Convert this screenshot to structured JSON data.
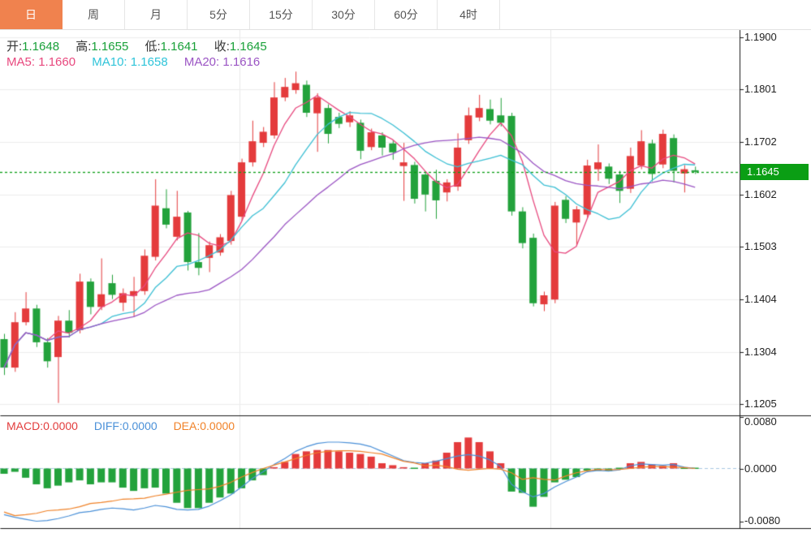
{
  "tabs": {
    "items": [
      {
        "label": "日",
        "active": true
      },
      {
        "label": "周",
        "active": false
      },
      {
        "label": "月",
        "active": false
      },
      {
        "label": "5分",
        "active": false
      },
      {
        "label": "15分",
        "active": false
      },
      {
        "label": "30分",
        "active": false
      },
      {
        "label": "60分",
        "active": false
      },
      {
        "label": "4时",
        "active": false
      }
    ]
  },
  "quote": {
    "open_label": "开:",
    "open": "1.1648",
    "high_label": "高:",
    "high": "1.1655",
    "low_label": "低:",
    "low": "1.1641",
    "close_label": "收:",
    "close": "1.1645"
  },
  "ma": {
    "ma5_label": "MA5:",
    "ma5": "1.1660",
    "ma10_label": "MA10:",
    "ma10": "1.1658",
    "ma20_label": "MA20:",
    "ma20": "1.1616"
  },
  "macd_readout": {
    "macd_label": "MACD:",
    "macd": "0.0000",
    "diff_label": "DIFF:",
    "diff": "0.0000",
    "dea_label": "DEA:",
    "dea": "0.0000"
  },
  "current_price": {
    "value": "1.1645"
  },
  "colors": {
    "tab_active_orange": "#f0824e",
    "up_red": "#e43b3c",
    "down_green": "#23a23c",
    "ma5_pink": "#e8487e",
    "ma10_cyan": "#3bbfd4",
    "ma20_purple": "#9b55c4",
    "diff_blue": "#4a90d8",
    "dea_orange": "#f08228",
    "price_line_green": "#0a9e14",
    "price_tag_green": "#0a9e14",
    "grid": "#ededed",
    "axis_line": "#1a1a1a"
  },
  "chart_data": {
    "type": "candlestick",
    "legend": [
      "MA5",
      "MA10",
      "MA20",
      "MACD",
      "DIFF",
      "DEA"
    ],
    "price_axis_ticks": [
      "1.1900",
      "1.1801",
      "1.1702",
      "1.1602",
      "1.1503",
      "1.1404",
      "1.1304",
      "1.1205"
    ],
    "price_ylim": [
      1.1205,
      1.19
    ],
    "macd_axis_ticks": [
      "0.0080",
      "0.0000",
      "-0.0080"
    ],
    "macd_ylim": [
      -0.008,
      0.008
    ],
    "current_price": 1.1645,
    "up_means": "close>=open (red)",
    "down_means": "close<open (green)",
    "ma_periods": [
      5,
      10,
      20
    ],
    "candles_ohlc": [
      [
        1.1328,
        1.1338,
        1.126,
        1.1274
      ],
      [
        1.1274,
        1.1379,
        1.1266,
        1.136
      ],
      [
        1.136,
        1.1417,
        1.1354,
        1.1386
      ],
      [
        1.1386,
        1.1393,
        1.1313,
        1.1322
      ],
      [
        1.1322,
        1.133,
        1.1274,
        1.1286
      ],
      [
        1.1294,
        1.1372,
        1.1207,
        1.1363
      ],
      [
        1.1363,
        1.1383,
        1.1331,
        1.134
      ],
      [
        1.1345,
        1.1452,
        1.1339,
        1.1437
      ],
      [
        1.1437,
        1.1443,
        1.1375,
        1.1389
      ],
      [
        1.1389,
        1.1481,
        1.1383,
        1.1413
      ],
      [
        1.1434,
        1.145,
        1.1404,
        1.1412
      ],
      [
        1.1397,
        1.1424,
        1.1381,
        1.1415
      ],
      [
        1.141,
        1.1446,
        1.137,
        1.1419
      ],
      [
        1.1419,
        1.1498,
        1.1412,
        1.1486
      ],
      [
        1.1484,
        1.1631,
        1.1477,
        1.1581
      ],
      [
        1.1576,
        1.1612,
        1.1538,
        1.1545
      ],
      [
        1.1522,
        1.1609,
        1.1515,
        1.156
      ],
      [
        1.1568,
        1.1571,
        1.1458,
        1.1474
      ],
      [
        1.1474,
        1.1529,
        1.1449,
        1.1463
      ],
      [
        1.1482,
        1.1513,
        1.1455,
        1.1506
      ],
      [
        1.1492,
        1.1527,
        1.1486,
        1.1521
      ],
      [
        1.1514,
        1.1609,
        1.1507,
        1.1601
      ],
      [
        1.156,
        1.167,
        1.1552,
        1.1663
      ],
      [
        1.1663,
        1.1742,
        1.1655,
        1.1703
      ],
      [
        1.17,
        1.173,
        1.1692,
        1.1721
      ],
      [
        1.1714,
        1.1815,
        1.1708,
        1.1786
      ],
      [
        1.1786,
        1.1823,
        1.1779,
        1.1806
      ],
      [
        1.18,
        1.1835,
        1.1793,
        1.1813
      ],
      [
        1.181,
        1.1818,
        1.1749,
        1.1757
      ],
      [
        1.1756,
        1.1794,
        1.1683,
        1.1786
      ],
      [
        1.1766,
        1.1773,
        1.1699,
        1.1717
      ],
      [
        1.1749,
        1.1757,
        1.1728,
        1.1736
      ],
      [
        1.1739,
        1.176,
        1.173,
        1.1752
      ],
      [
        1.1738,
        1.1744,
        1.1669,
        1.1685
      ],
      [
        1.1692,
        1.1727,
        1.1686,
        1.172
      ],
      [
        1.1714,
        1.172,
        1.1676,
        1.1691
      ],
      [
        1.1699,
        1.1705,
        1.1668,
        1.1682
      ],
      [
        1.1656,
        1.17,
        1.159,
        1.1663
      ],
      [
        1.1658,
        1.1664,
        1.1585,
        1.1594
      ],
      [
        1.164,
        1.1646,
        1.157,
        1.1602
      ],
      [
        1.1628,
        1.1649,
        1.1556,
        1.1591
      ],
      [
        1.1606,
        1.1631,
        1.1589,
        1.1625
      ],
      [
        1.1617,
        1.1718,
        1.1609,
        1.1691
      ],
      [
        1.1705,
        1.1767,
        1.1698,
        1.1752
      ],
      [
        1.1748,
        1.1791,
        1.1741,
        1.1766
      ],
      [
        1.1764,
        1.1782,
        1.1735,
        1.1742
      ],
      [
        1.1752,
        1.1785,
        1.1731,
        1.1738
      ],
      [
        1.1751,
        1.1757,
        1.1562,
        1.157
      ],
      [
        1.157,
        1.1578,
        1.15,
        1.151
      ],
      [
        1.152,
        1.1528,
        1.139,
        1.1396
      ],
      [
        1.1394,
        1.1418,
        1.1381,
        1.1411
      ],
      [
        1.1403,
        1.1588,
        1.1396,
        1.1581
      ],
      [
        1.1592,
        1.1599,
        1.1548,
        1.1556
      ],
      [
        1.1549,
        1.158,
        1.1506,
        1.1574
      ],
      [
        1.1564,
        1.1668,
        1.1558,
        1.1657
      ],
      [
        1.165,
        1.1697,
        1.1628,
        1.1663
      ],
      [
        1.1655,
        1.1661,
        1.1622,
        1.1632
      ],
      [
        1.164,
        1.1647,
        1.1586,
        1.1609
      ],
      [
        1.1613,
        1.1691,
        1.1605,
        1.1675
      ],
      [
        1.1657,
        1.1724,
        1.165,
        1.1703
      ],
      [
        1.1699,
        1.1706,
        1.1627,
        1.1641
      ],
      [
        1.1659,
        1.1725,
        1.1652,
        1.1717
      ],
      [
        1.1709,
        1.1716,
        1.1625,
        1.1647
      ],
      [
        1.1642,
        1.1658,
        1.1606,
        1.165
      ],
      [
        1.1648,
        1.1655,
        1.1641,
        1.1645
      ]
    ],
    "macd": {
      "hist": [
        -0.0008,
        -0.0005,
        -0.0014,
        -0.0024,
        -0.003,
        -0.0026,
        -0.0021,
        -0.0018,
        -0.0024,
        -0.0021,
        -0.0021,
        -0.0029,
        -0.0034,
        -0.003,
        -0.0029,
        -0.0038,
        -0.0052,
        -0.006,
        -0.006,
        -0.0052,
        -0.0044,
        -0.0038,
        -0.003,
        -0.0018,
        -0.001,
        0.0002,
        0.001,
        0.0022,
        0.0026,
        0.0028,
        0.0028,
        0.0026,
        0.0024,
        0.0022,
        0.0018,
        0.0008,
        0.0005,
        0.0002,
        0.0001,
        0.0008,
        0.0012,
        0.0024,
        0.004,
        0.0047,
        0.004,
        0.0026,
        0.0008,
        -0.0035,
        -0.0037,
        -0.0058,
        -0.0043,
        -0.0021,
        -0.0017,
        -0.0013,
        -0.0003,
        -0.0003,
        -0.0004,
        -0.0001,
        0.0008,
        0.001,
        0.0006,
        0.0004,
        0.0008,
        0.0001,
        0.0
      ],
      "dif": [
        -0.007,
        -0.0074,
        -0.0077,
        -0.008,
        -0.0079,
        -0.0076,
        -0.0072,
        -0.0067,
        -0.0065,
        -0.0062,
        -0.006,
        -0.0061,
        -0.0063,
        -0.006,
        -0.0056,
        -0.0058,
        -0.0062,
        -0.0063,
        -0.0062,
        -0.0057,
        -0.0049,
        -0.004,
        -0.0028,
        -0.0015,
        -0.0005,
        0.0006,
        0.0015,
        0.0026,
        0.0033,
        0.0038,
        0.004,
        0.004,
        0.0039,
        0.0037,
        0.0033,
        0.0026,
        0.0019,
        0.0012,
        0.0009,
        0.0008,
        0.0011,
        0.0015,
        0.0019,
        0.0021,
        0.0019,
        0.0013,
        0.0003,
        -0.0024,
        -0.0035,
        -0.0043,
        -0.0038,
        -0.0028,
        -0.002,
        -0.0013,
        -0.0005,
        -0.0003,
        -0.0004,
        -0.0002,
        0.0004,
        0.0007,
        0.0006,
        0.0005,
        0.0006,
        0.0002,
        0.0
      ]
    }
  }
}
